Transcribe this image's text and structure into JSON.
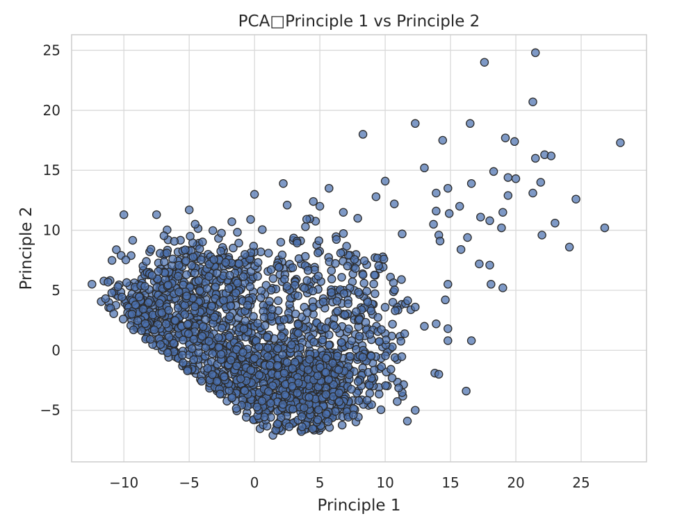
{
  "chart_data": {
    "type": "scatter",
    "title": "PCA□Principle 1 vs Principle 2",
    "xlabel": "Principle 1",
    "ylabel": "Principle 2",
    "xlim": [
      -14.0,
      30.0
    ],
    "ylim": [
      -9.3,
      26.3
    ],
    "xticks": [
      -10,
      -5,
      0,
      5,
      10,
      15,
      20,
      25
    ],
    "yticks": [
      -5,
      0,
      5,
      10,
      15,
      20,
      25
    ],
    "xtick_labels": [
      "−10",
      "−5",
      "0",
      "5",
      "10",
      "15",
      "20",
      "25"
    ],
    "ytick_labels": [
      "−5",
      "0",
      "5",
      "10",
      "15",
      "20",
      "25"
    ],
    "grid": true,
    "marker_color": "#4c72b0",
    "marker_edge_color": "#2b2b2b",
    "outliers": [
      [
        21.5,
        24.8
      ],
      [
        17.6,
        24.0
      ],
      [
        21.3,
        20.7
      ],
      [
        12.3,
        18.9
      ],
      [
        16.5,
        18.9
      ],
      [
        8.3,
        18.0
      ],
      [
        14.4,
        17.5
      ],
      [
        28.0,
        17.3
      ],
      [
        19.2,
        17.7
      ],
      [
        19.9,
        17.4
      ],
      [
        22.2,
        16.3
      ],
      [
        22.7,
        16.2
      ],
      [
        21.5,
        16.0
      ],
      [
        13.0,
        15.2
      ],
      [
        18.3,
        14.9
      ],
      [
        19.4,
        14.4
      ],
      [
        20.0,
        14.3
      ],
      [
        10.0,
        14.1
      ],
      [
        21.9,
        14.0
      ],
      [
        16.6,
        13.9
      ],
      [
        5.7,
        13.5
      ],
      [
        14.8,
        13.5
      ],
      [
        21.3,
        13.1
      ],
      [
        13.9,
        13.1
      ],
      [
        9.3,
        12.8
      ],
      [
        19.4,
        12.9
      ],
      [
        24.6,
        12.6
      ],
      [
        10.7,
        12.2
      ],
      [
        15.7,
        12.0
      ],
      [
        13.9,
        11.6
      ],
      [
        14.9,
        11.4
      ],
      [
        17.3,
        11.1
      ],
      [
        19.0,
        11.5
      ],
      [
        18.0,
        10.8
      ],
      [
        23.0,
        10.6
      ],
      [
        26.8,
        10.2
      ],
      [
        13.7,
        10.5
      ],
      [
        18.9,
        10.2
      ],
      [
        14.1,
        9.6
      ],
      [
        22.0,
        9.6
      ],
      [
        16.3,
        9.4
      ],
      [
        14.2,
        9.1
      ],
      [
        17.2,
        7.2
      ],
      [
        24.1,
        8.6
      ],
      [
        15.8,
        8.4
      ],
      [
        18.0,
        7.1
      ],
      [
        18.1,
        5.5
      ],
      [
        19.0,
        5.2
      ],
      [
        14.8,
        5.5
      ],
      [
        14.6,
        4.2
      ],
      [
        12.3,
        3.6
      ],
      [
        13.9,
        2.2
      ],
      [
        13.0,
        2.0
      ],
      [
        14.8,
        1.8
      ],
      [
        16.6,
        0.8
      ],
      [
        14.8,
        0.8
      ],
      [
        13.8,
        -1.9
      ],
      [
        14.1,
        -2.0
      ],
      [
        16.2,
        -3.4
      ],
      [
        12.3,
        -5.0
      ],
      [
        11.7,
        -5.9
      ],
      [
        -10.0,
        11.3
      ],
      [
        -7.5,
        11.3
      ],
      [
        -5.0,
        11.7
      ],
      [
        0.0,
        13.0
      ],
      [
        2.2,
        13.9
      ],
      [
        4.5,
        12.4
      ],
      [
        6.8,
        11.5
      ],
      [
        7.9,
        11.0
      ],
      [
        3.9,
        10.3
      ],
      [
        11.3,
        9.7
      ],
      [
        -0.3,
        10.9
      ],
      [
        2.5,
        12.1
      ],
      [
        5.0,
        12.0
      ],
      [
        9.9,
        7.6
      ]
    ],
    "clusters": [
      {
        "cx": -1.0,
        "cy": -1.5,
        "sx": 4.2,
        "sy": 2.6,
        "n": 650
      },
      {
        "cx": -7.5,
        "cy": 3.0,
        "sx": 2.4,
        "sy": 2.2,
        "n": 320
      },
      {
        "cx": 4.5,
        "cy": -3.5,
        "sx": 2.6,
        "sy": 2.0,
        "n": 420
      },
      {
        "cx": -3.0,
        "cy": 6.0,
        "sx": 3.0,
        "sy": 2.2,
        "n": 260
      },
      {
        "cx": 5.0,
        "cy": 4.0,
        "sx": 2.8,
        "sy": 3.2,
        "n": 200
      },
      {
        "cx": 9.5,
        "cy": 2.0,
        "sx": 1.6,
        "sy": 3.0,
        "n": 70
      }
    ]
  }
}
